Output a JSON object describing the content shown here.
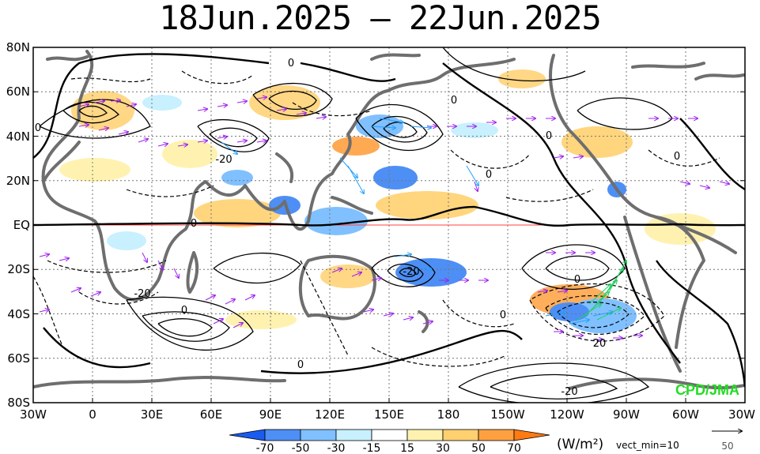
{
  "title": "18Jun.2025 – 22Jun.2025",
  "axes": {
    "lat_labels": [
      "80N",
      "60N",
      "40N",
      "20N",
      "EQ",
      "20S",
      "40S",
      "60S",
      "80S"
    ],
    "lon_labels": [
      "30W",
      "0",
      "30E",
      "60E",
      "90E",
      "120E",
      "150E",
      "180",
      "150W",
      "120W",
      "90W",
      "60W",
      "30W"
    ]
  },
  "contour_labels": [
    "0",
    "0",
    "0",
    "0",
    "0",
    "0",
    "0",
    "0",
    "-20",
    "-20",
    "20",
    "-20",
    "0",
    "-20",
    "0",
    "0"
  ],
  "colorbar": {
    "labels": [
      "-70",
      "-50",
      "-30",
      "-15",
      "15",
      "30",
      "50",
      "70"
    ],
    "colors": [
      "#1a5cf0",
      "#4d8ff5",
      "#80c0ff",
      "#c8f0ff",
      "#ffffff",
      "#fff2b0",
      "#ffd070",
      "#ffa040",
      "#ff7a10"
    ],
    "unit": "(W/m²)",
    "vector_note": "vect_min=10",
    "ref_vector_value": "50"
  },
  "credit": "CPD/JMA",
  "colors": {
    "coast": "#6e6e6e",
    "vector_purple": "#a020f0",
    "vector_green": "#20d060",
    "vector_blue": "#20a0ff",
    "equator": "#ff4040",
    "contour": "#000000",
    "credit": "#22dd22"
  }
}
